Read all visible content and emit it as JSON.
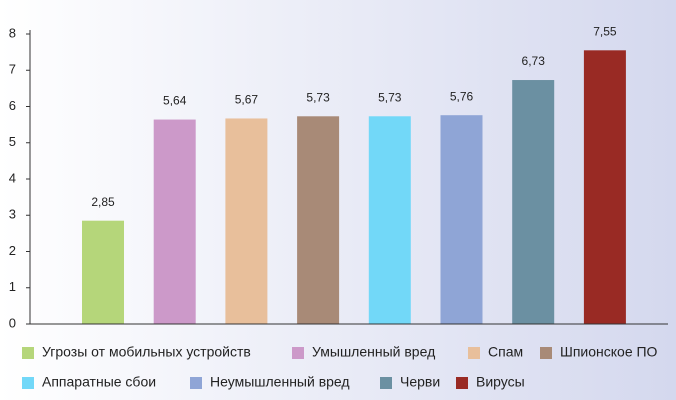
{
  "chart_data": {
    "type": "bar",
    "categories": [
      "Угрозы от мобильных устройств",
      "Умышленный вред",
      "Спам",
      "Шпионское ПО",
      "Аппаратные сбои",
      "Неумышленный вред",
      "Черви",
      "Вирусы"
    ],
    "values": [
      2.85,
      5.64,
      5.67,
      5.73,
      5.73,
      5.76,
      6.73,
      7.55
    ],
    "value_labels": [
      "2,85",
      "5,64",
      "5,67",
      "5,73",
      "5,73",
      "5,76",
      "6,73",
      "7,55"
    ],
    "colors": [
      "#b5d67a",
      "#cc99c9",
      "#e8bf9b",
      "#a88a77",
      "#72d8f8",
      "#8fa5d6",
      "#6b90a2",
      "#992a24"
    ],
    "ylim": [
      0,
      8
    ],
    "yticks": [
      0,
      1,
      2,
      3,
      4,
      5,
      6,
      7,
      8
    ],
    "grid": false
  }
}
